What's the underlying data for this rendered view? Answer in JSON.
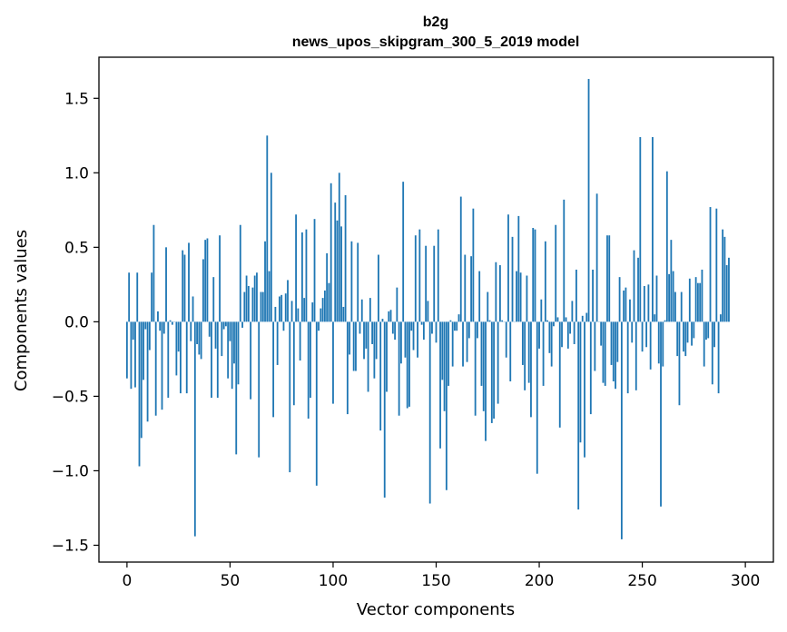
{
  "chart_data": {
    "type": "bar",
    "title": "b2g",
    "subtitle": "news_upos_skipgram_300_5_2019 model",
    "xlabel": "Vector components",
    "ylabel": "Components values",
    "xlim": [
      -13.6,
      313.6
    ],
    "ylim": [
      -1.613,
      1.776
    ],
    "xticks": [
      0,
      50,
      100,
      150,
      200,
      250,
      300
    ],
    "yticks": [
      -1.5,
      -1.0,
      -0.5,
      0.0,
      0.5,
      1.0,
      1.5
    ],
    "ytick_labels": [
      "−1.5",
      "−1.0",
      "−0.5",
      "0.0",
      "0.5",
      "1.0",
      "1.5"
    ],
    "bar_color": "#1f77b4",
    "grid": false,
    "values": [
      -0.38,
      0.33,
      -0.45,
      -0.12,
      -0.44,
      0.33,
      -0.97,
      -0.78,
      -0.39,
      -0.05,
      -0.67,
      -0.19,
      0.33,
      0.65,
      -0.63,
      0.07,
      -0.06,
      -0.59,
      -0.08,
      0.5,
      -0.51,
      0.01,
      -0.02,
      0.0,
      -0.36,
      -0.2,
      -0.48,
      0.48,
      0.45,
      -0.48,
      0.53,
      -0.13,
      0.17,
      -1.44,
      -0.15,
      -0.22,
      -0.25,
      0.42,
      0.55,
      0.56,
      -0.1,
      -0.51,
      0.3,
      -0.18,
      -0.51,
      0.58,
      -0.23,
      -0.05,
      -0.03,
      -0.38,
      -0.13,
      -0.45,
      -0.28,
      -0.89,
      -0.42,
      0.65,
      -0.04,
      0.2,
      0.31,
      0.24,
      -0.52,
      0.23,
      0.31,
      0.33,
      -0.91,
      0.2,
      0.2,
      0.54,
      1.25,
      0.34,
      1.0,
      -0.64,
      0.1,
      -0.29,
      0.17,
      0.18,
      -0.06,
      0.19,
      0.28,
      -1.01,
      0.14,
      -0.56,
      0.72,
      0.09,
      -0.26,
      0.6,
      0.16,
      0.62,
      -0.65,
      -0.51,
      0.13,
      0.69,
      -1.1,
      -0.06,
      0.09,
      0.16,
      0.21,
      0.46,
      0.26,
      0.93,
      -0.55,
      0.8,
      0.68,
      1.0,
      0.64,
      0.1,
      0.85,
      -0.62,
      -0.22,
      0.54,
      -0.33,
      -0.33,
      0.53,
      -0.08,
      0.15,
      -0.25,
      -0.18,
      -0.47,
      0.16,
      -0.15,
      -0.38,
      -0.25,
      0.45,
      -0.73,
      0.02,
      -1.18,
      -0.47,
      0.07,
      0.08,
      -0.08,
      -0.12,
      0.23,
      -0.63,
      -0.28,
      0.94,
      -0.24,
      -0.58,
      -0.57,
      -0.06,
      -0.19,
      0.58,
      -0.24,
      0.62,
      -0.02,
      -0.12,
      0.51,
      0.14,
      -1.22,
      -0.08,
      0.51,
      -0.14,
      0.62,
      -0.85,
      -0.39,
      -0.6,
      -1.13,
      -0.43,
      0.01,
      -0.3,
      -0.06,
      -0.06,
      0.05,
      0.84,
      -0.3,
      0.45,
      -0.27,
      -0.11,
      0.44,
      0.76,
      -0.63,
      -0.11,
      0.34,
      -0.43,
      -0.6,
      -0.8,
      0.2,
      0.01,
      -0.68,
      -0.65,
      0.4,
      -0.55,
      0.38,
      0.01,
      0.0,
      -0.24,
      0.72,
      -0.4,
      0.57,
      0.0,
      0.34,
      0.71,
      0.33,
      -0.29,
      -0.46,
      0.31,
      -0.41,
      -0.64,
      0.63,
      0.62,
      -1.02,
      -0.18,
      0.15,
      -0.43,
      0.54,
      0.01,
      -0.21,
      -0.3,
      -0.03,
      0.65,
      0.03,
      -0.71,
      -0.17,
      0.82,
      0.03,
      -0.18,
      -0.08,
      0.14,
      -0.15,
      0.35,
      -1.26,
      -0.81,
      0.04,
      -0.91,
      0.06,
      1.63,
      -0.62,
      0.35,
      -0.33,
      0.86,
      0.0,
      -0.16,
      -0.41,
      -0.43,
      0.58,
      0.58,
      -0.29,
      -0.4,
      -0.45,
      -0.27,
      0.3,
      -1.46,
      0.21,
      0.23,
      -0.48,
      0.15,
      -0.14,
      0.48,
      -0.46,
      0.43,
      1.24,
      -0.2,
      0.24,
      -0.17,
      0.25,
      -0.32,
      1.24,
      0.05,
      0.31,
      -0.28,
      -1.24,
      -0.3,
      0.01,
      1.01,
      0.32,
      0.55,
      0.34,
      0.2,
      -0.23,
      -0.56,
      0.2,
      -0.2,
      -0.23,
      -0.14,
      0.29,
      -0.16,
      -0.11,
      0.3,
      0.26,
      0.26,
      0.35,
      -0.3,
      -0.12,
      -0.11,
      0.77,
      -0.42,
      -0.17,
      0.76,
      -0.48,
      0.05,
      0.62,
      0.57,
      0.38,
      0.43
    ]
  }
}
